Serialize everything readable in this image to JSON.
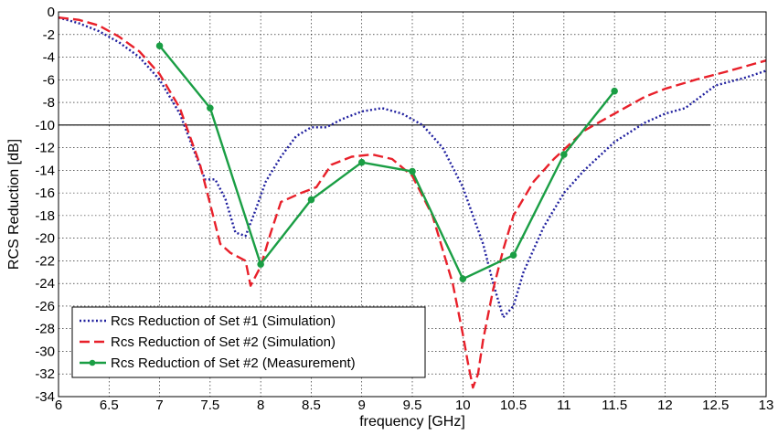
{
  "chart_data": {
    "type": "line",
    "title": "",
    "xlabel": "frequency [GHz]",
    "ylabel": "RCS Reduction [dB]",
    "xlim": [
      6,
      13
    ],
    "ylim": [
      -34,
      0
    ],
    "xticks": [
      "6",
      "6.5",
      "7",
      "7.5",
      "8",
      "8.5",
      "9",
      "9.5",
      "10",
      "10.5",
      "11",
      "11.5",
      "12",
      "12.5",
      "13"
    ],
    "yticks": [
      "0",
      "-2",
      "-4",
      "-6",
      "-8",
      "-10",
      "-12",
      "-14",
      "-16",
      "-18",
      "-20",
      "-22",
      "-24",
      "-26",
      "-28",
      "-30",
      "-32",
      "-34"
    ],
    "grid": true,
    "legend_position": "bottom-left",
    "reference_line": {
      "y": -10,
      "x": [
        6,
        12.45
      ],
      "color": "#000000"
    },
    "series": [
      {
        "name": "Rcs Reduction of Set #1 (Simulation)",
        "style": "dotted",
        "color": "#1f1f9e",
        "x": [
          6.0,
          6.2,
          6.4,
          6.6,
          6.8,
          7.0,
          7.2,
          7.35,
          7.45,
          7.55,
          7.65,
          7.75,
          7.85,
          7.95,
          8.05,
          8.2,
          8.35,
          8.5,
          8.65,
          8.8,
          9.0,
          9.2,
          9.4,
          9.6,
          9.8,
          10.0,
          10.1,
          10.2,
          10.3,
          10.4,
          10.5,
          10.6,
          10.8,
          11.0,
          11.2,
          11.5,
          11.8,
          12.0,
          12.2,
          12.5,
          12.8,
          13.0
        ],
        "y": [
          -0.5,
          -1.0,
          -1.7,
          -2.7,
          -4.0,
          -6.0,
          -9.0,
          -12.5,
          -14.8,
          -14.8,
          -16.5,
          -19.5,
          -19.8,
          -17.5,
          -15.0,
          -12.8,
          -11.0,
          -10.2,
          -10.2,
          -9.5,
          -8.8,
          -8.5,
          -9.0,
          -10.0,
          -12.0,
          -15.5,
          -18.0,
          -20.5,
          -24.0,
          -27.0,
          -26.0,
          -23.0,
          -19.0,
          -16.0,
          -14.0,
          -11.5,
          -9.8,
          -9.0,
          -8.5,
          -6.5,
          -5.8,
          -5.2
        ]
      },
      {
        "name": "Rcs Reduction of Set #2 (Simulation)",
        "style": "dashed",
        "color": "#e8202a",
        "x": [
          6.0,
          6.2,
          6.4,
          6.6,
          6.8,
          7.0,
          7.2,
          7.4,
          7.5,
          7.6,
          7.7,
          7.85,
          7.9,
          8.0,
          8.1,
          8.2,
          8.4,
          8.55,
          8.7,
          8.9,
          9.1,
          9.3,
          9.5,
          9.7,
          9.9,
          10.0,
          10.05,
          10.1,
          10.15,
          10.2,
          10.3,
          10.4,
          10.5,
          10.7,
          10.9,
          11.2,
          11.5,
          11.8,
          12.0,
          12.3,
          12.6,
          13.0
        ],
        "y": [
          -0.5,
          -0.7,
          -1.2,
          -2.2,
          -3.5,
          -5.5,
          -8.5,
          -13.5,
          -17.0,
          -20.5,
          -21.3,
          -22.0,
          -24.2,
          -22.5,
          -19.5,
          -16.8,
          -16.0,
          -15.5,
          -13.5,
          -12.8,
          -12.6,
          -13.0,
          -14.5,
          -18.0,
          -24.0,
          -28.5,
          -31.0,
          -33.2,
          -32.0,
          -29.0,
          -24.5,
          -21.0,
          -18.0,
          -15.0,
          -13.0,
          -10.5,
          -9.0,
          -7.5,
          -6.8,
          -6.0,
          -5.3,
          -4.3
        ]
      },
      {
        "name": "Rcs Reduction of Set #2 (Measurement)",
        "style": "solid-marker",
        "color": "#1a9e44",
        "x": [
          7.0,
          7.5,
          8.0,
          8.5,
          9.0,
          9.5,
          10.0,
          10.5,
          11.0,
          11.5
        ],
        "y": [
          -3.0,
          -8.5,
          -22.3,
          -16.6,
          -13.3,
          -14.1,
          -23.6,
          -21.5,
          -12.6,
          -7.0
        ]
      }
    ]
  }
}
